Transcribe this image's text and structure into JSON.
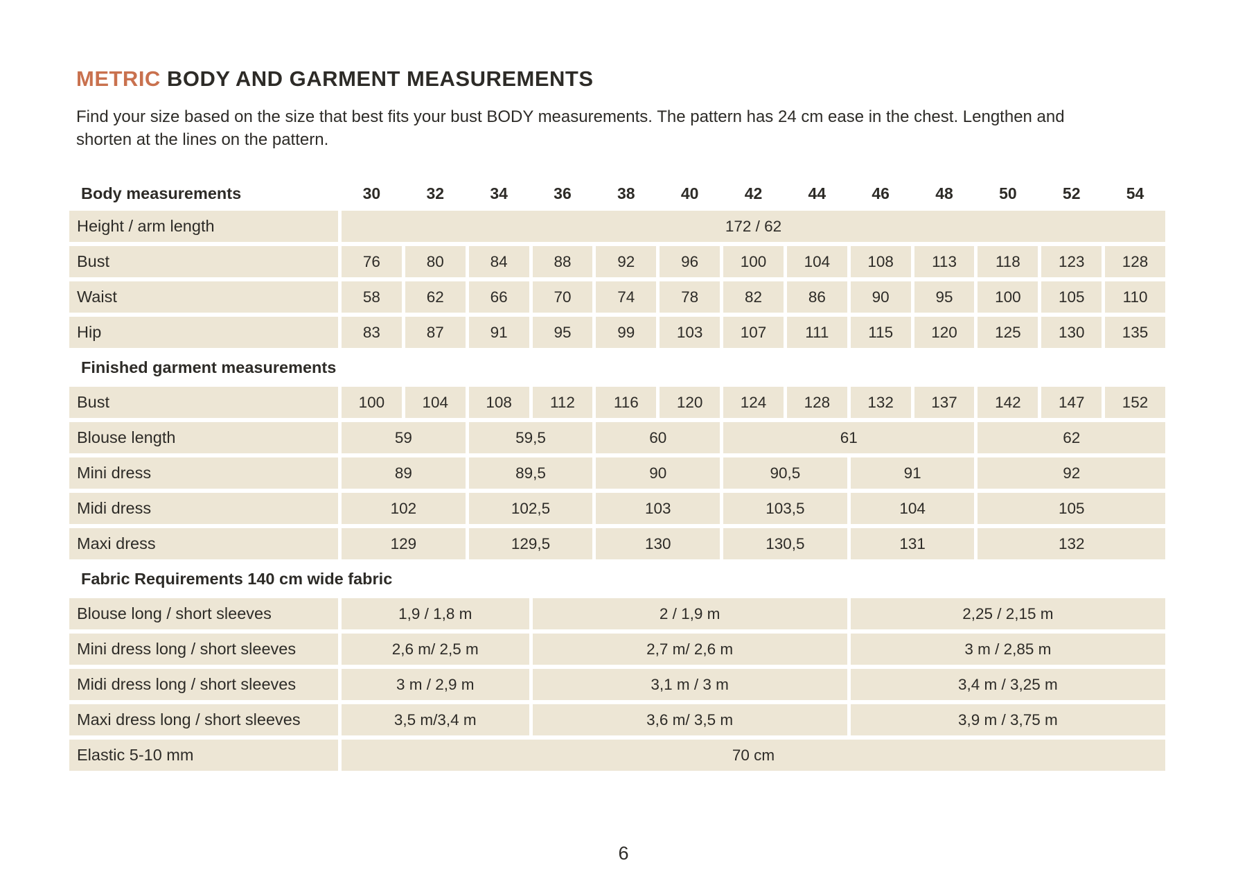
{
  "colors": {
    "accent": "#C9714E",
    "cell_background": "#EDE6D5",
    "text": "#2D2B27"
  },
  "header": {
    "title_highlight": "METRIC",
    "title_rest": " BODY AND GARMENT MEASUREMENTS",
    "intro_line1": "Find your size based on the size that best fits your bust BODY measurements. The pattern has 24 cm ease in the chest. Lengthen and",
    "intro_line2": "shorten at the lines on the pattern."
  },
  "table": {
    "header_label": "Body measurements",
    "sizes": [
      "30",
      "32",
      "34",
      "36",
      "38",
      "40",
      "42",
      "44",
      "46",
      "48",
      "50",
      "52",
      "54"
    ],
    "rows": [
      {
        "type": "data",
        "label": "Height / arm length",
        "cells": [
          {
            "span": 13,
            "value": "172 / 62"
          }
        ]
      },
      {
        "type": "data",
        "label": "Bust",
        "cells": [
          {
            "span": 1,
            "value": "76"
          },
          {
            "span": 1,
            "value": "80"
          },
          {
            "span": 1,
            "value": "84"
          },
          {
            "span": 1,
            "value": "88"
          },
          {
            "span": 1,
            "value": "92"
          },
          {
            "span": 1,
            "value": "96"
          },
          {
            "span": 1,
            "value": "100"
          },
          {
            "span": 1,
            "value": "104"
          },
          {
            "span": 1,
            "value": "108"
          },
          {
            "span": 1,
            "value": "113"
          },
          {
            "span": 1,
            "value": "118"
          },
          {
            "span": 1,
            "value": "123"
          },
          {
            "span": 1,
            "value": "128"
          }
        ]
      },
      {
        "type": "data",
        "label": "Waist",
        "cells": [
          {
            "span": 1,
            "value": "58"
          },
          {
            "span": 1,
            "value": "62"
          },
          {
            "span": 1,
            "value": "66"
          },
          {
            "span": 1,
            "value": "70"
          },
          {
            "span": 1,
            "value": "74"
          },
          {
            "span": 1,
            "value": "78"
          },
          {
            "span": 1,
            "value": "82"
          },
          {
            "span": 1,
            "value": "86"
          },
          {
            "span": 1,
            "value": "90"
          },
          {
            "span": 1,
            "value": "95"
          },
          {
            "span": 1,
            "value": "100"
          },
          {
            "span": 1,
            "value": "105"
          },
          {
            "span": 1,
            "value": "110"
          }
        ]
      },
      {
        "type": "data",
        "label": "Hip",
        "cells": [
          {
            "span": 1,
            "value": "83"
          },
          {
            "span": 1,
            "value": "87"
          },
          {
            "span": 1,
            "value": "91"
          },
          {
            "span": 1,
            "value": "95"
          },
          {
            "span": 1,
            "value": "99"
          },
          {
            "span": 1,
            "value": "103"
          },
          {
            "span": 1,
            "value": "107"
          },
          {
            "span": 1,
            "value": "111"
          },
          {
            "span": 1,
            "value": "115"
          },
          {
            "span": 1,
            "value": "120"
          },
          {
            "span": 1,
            "value": "125"
          },
          {
            "span": 1,
            "value": "130"
          },
          {
            "span": 1,
            "value": "135"
          }
        ]
      },
      {
        "type": "section",
        "label": "Finished garment measurements"
      },
      {
        "type": "data",
        "label": "Bust",
        "cells": [
          {
            "span": 1,
            "value": "100"
          },
          {
            "span": 1,
            "value": "104"
          },
          {
            "span": 1,
            "value": "108"
          },
          {
            "span": 1,
            "value": "112"
          },
          {
            "span": 1,
            "value": "116"
          },
          {
            "span": 1,
            "value": "120"
          },
          {
            "span": 1,
            "value": "124"
          },
          {
            "span": 1,
            "value": "128"
          },
          {
            "span": 1,
            "value": "132"
          },
          {
            "span": 1,
            "value": "137"
          },
          {
            "span": 1,
            "value": "142"
          },
          {
            "span": 1,
            "value": "147"
          },
          {
            "span": 1,
            "value": "152"
          }
        ]
      },
      {
        "type": "data",
        "label": "Blouse length",
        "cells": [
          {
            "span": 2,
            "value": "59"
          },
          {
            "span": 2,
            "value": "59,5"
          },
          {
            "span": 2,
            "value": "60"
          },
          {
            "span": 4,
            "value": "61"
          },
          {
            "span": 3,
            "value": "62"
          }
        ]
      },
      {
        "type": "data",
        "label": "Mini dress",
        "cells": [
          {
            "span": 2,
            "value": "89"
          },
          {
            "span": 2,
            "value": "89,5"
          },
          {
            "span": 2,
            "value": "90"
          },
          {
            "span": 2,
            "value": "90,5"
          },
          {
            "span": 2,
            "value": "91"
          },
          {
            "span": 3,
            "value": "92"
          }
        ]
      },
      {
        "type": "data",
        "label": "Midi dress",
        "cells": [
          {
            "span": 2,
            "value": "102"
          },
          {
            "span": 2,
            "value": "102,5"
          },
          {
            "span": 2,
            "value": "103"
          },
          {
            "span": 2,
            "value": "103,5"
          },
          {
            "span": 2,
            "value": "104"
          },
          {
            "span": 3,
            "value": "105"
          }
        ]
      },
      {
        "type": "data",
        "label": "Maxi dress",
        "cells": [
          {
            "span": 2,
            "value": "129"
          },
          {
            "span": 2,
            "value": "129,5"
          },
          {
            "span": 2,
            "value": "130"
          },
          {
            "span": 2,
            "value": "130,5"
          },
          {
            "span": 2,
            "value": "131"
          },
          {
            "span": 3,
            "value": "132"
          }
        ]
      },
      {
        "type": "section",
        "label": "Fabric Requirements 140 cm wide fabric"
      },
      {
        "type": "data",
        "label": "Blouse long / short sleeves",
        "cells": [
          {
            "span": 3,
            "value": "1,9 / 1,8 m"
          },
          {
            "span": 5,
            "value": "2 / 1,9 m"
          },
          {
            "span": 5,
            "value": "2,25 / 2,15 m"
          }
        ]
      },
      {
        "type": "data",
        "label": "Mini dress long / short sleeves",
        "cells": [
          {
            "span": 3,
            "value": "2,6 m/ 2,5 m"
          },
          {
            "span": 5,
            "value": "2,7 m/ 2,6 m"
          },
          {
            "span": 5,
            "value": "3 m / 2,85 m"
          }
        ]
      },
      {
        "type": "data",
        "label": "Midi dress long / short sleeves",
        "cells": [
          {
            "span": 3,
            "value": "3 m / 2,9 m"
          },
          {
            "span": 5,
            "value": "3,1 m / 3 m"
          },
          {
            "span": 5,
            "value": "3,4 m / 3,25 m"
          }
        ]
      },
      {
        "type": "data",
        "label": "Maxi dress long / short sleeves",
        "cells": [
          {
            "span": 3,
            "value": "3,5 m/3,4 m"
          },
          {
            "span": 5,
            "value": "3,6 m/ 3,5 m"
          },
          {
            "span": 5,
            "value": "3,9 m / 3,75 m"
          }
        ]
      },
      {
        "type": "data",
        "label": "Elastic 5-10 mm",
        "cells": [
          {
            "span": 13,
            "value": "70 cm"
          }
        ]
      }
    ]
  },
  "footer": {
    "page_number": "6"
  }
}
